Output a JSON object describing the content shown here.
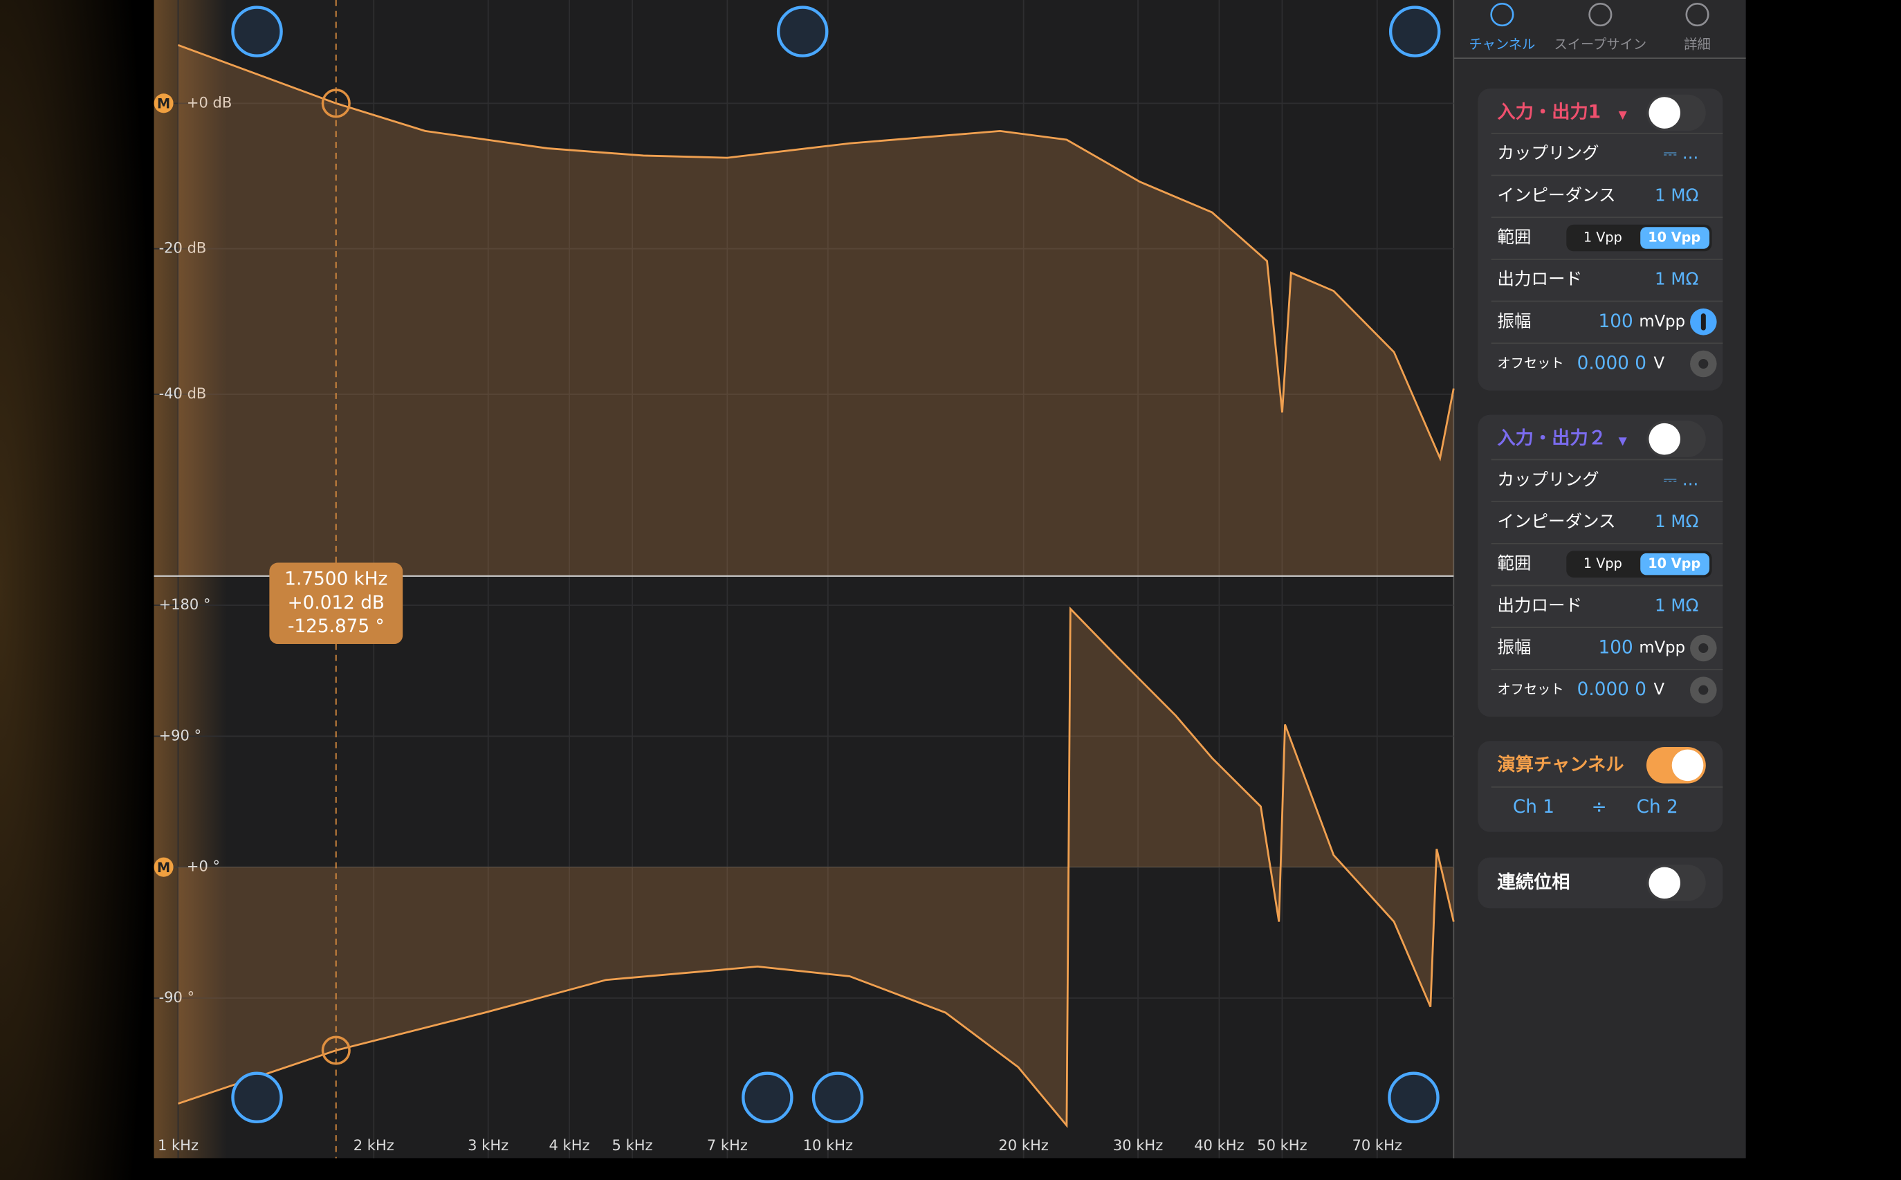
{
  "plot": {
    "xlim": [
      918,
      91800
    ],
    "log_x": true,
    "xticks": [
      {
        "value": 1000,
        "label": "1 kHz"
      },
      {
        "value": 2000,
        "label": "2 kHz"
      },
      {
        "value": 3000,
        "label": "3 kHz"
      },
      {
        "value": 4000,
        "label": "4 kHz"
      },
      {
        "value": 5000,
        "label": "5 kHz"
      },
      {
        "value": 7000,
        "label": "7 kHz"
      },
      {
        "value": 10000,
        "label": "10 kHz"
      },
      {
        "value": 20000,
        "label": "20 kHz"
      },
      {
        "value": 30000,
        "label": "30 kHz"
      },
      {
        "value": 40000,
        "label": "40 kHz"
      },
      {
        "value": 50000,
        "label": "50 kHz"
      },
      {
        "value": 70000,
        "label": "70 kHz"
      }
    ],
    "reference_marker": "M",
    "magnitude": {
      "type": "line",
      "color": "#f0a050",
      "x": [
        1000,
        1750,
        2400,
        3700,
        5200,
        7000,
        10800,
        18400,
        23300,
        30200,
        39000,
        47400,
        50000,
        51600,
        60000,
        74300,
        87500,
        91800
      ],
      "values": [
        8,
        0,
        -3.8,
        -6.2,
        -7.2,
        -7.5,
        -5.5,
        -3.8,
        -5,
        -10.8,
        -15,
        -21.7,
        -42.5,
        -23.3,
        -25.8,
        -34.2,
        -48.8,
        -39.2
      ],
      "ylim": [
        -65,
        14.2
      ],
      "yticks": [
        {
          "value": 0,
          "label": "+0 dB"
        },
        {
          "value": -20,
          "label": "-20 dB"
        },
        {
          "value": -40,
          "label": "-40 dB"
        }
      ]
    },
    "phase": {
      "type": "line",
      "color": "#f0a050",
      "x": [
        1000,
        1750,
        2965,
        4556,
        7795,
        10800,
        15170,
        19630,
        23300,
        23610,
        27690,
        34310,
        39000,
        46350,
        49430,
        50510,
        60000,
        74300,
        84580,
        86440,
        91800
      ],
      "values": [
        -162.5,
        -125.875,
        -100,
        -77.5,
        -68.3,
        -75,
        -100,
        -137.5,
        -177.5,
        177.5,
        145.8,
        104,
        75,
        41.7,
        -37.5,
        98,
        8.3,
        -37.5,
        -96,
        12.5,
        -37.5
      ],
      "ylim": [
        -200,
        199.2
      ],
      "yticks": [
        {
          "value": 180,
          "label": "+180 °"
        },
        {
          "value": 90,
          "label": "+90 °"
        },
        {
          "value": 0,
          "label": "+0 °"
        },
        {
          "value": -90,
          "label": "-90 °"
        }
      ]
    },
    "cursor": {
      "x": 1750,
      "labels": [
        "1.7500 kHz",
        "+0.012 dB",
        "-125.875 °"
      ]
    }
  },
  "sidebar": {
    "tabs": [
      {
        "label": "チャンネル",
        "active": true
      },
      {
        "label": "スイープサイン",
        "active": false
      },
      {
        "label": "詳細",
        "active": false
      }
    ],
    "channels": [
      {
        "title": "入力・出力1",
        "color": "#f0506e",
        "enabled": false,
        "coupling": {
          "label": "カップリング",
          "value": "⎓ ..."
        },
        "impedance": {
          "label": "インピーダンス",
          "value": "1 MΩ"
        },
        "range": {
          "label": "範囲",
          "options": [
            "1 Vpp",
            "10 Vpp"
          ],
          "selected": 1
        },
        "load": {
          "label": "出力ロード",
          "value": "1 MΩ"
        },
        "amplitude": {
          "label": "振幅",
          "value": "100",
          "unit": "mVpp",
          "active": true
        },
        "offset": {
          "label": "オフセット",
          "value": "0.000 0",
          "unit": "V",
          "active": false
        }
      },
      {
        "title": "入力・出力２",
        "color": "#7b6cf0",
        "enabled": false,
        "coupling": {
          "label": "カップリング",
          "value": "⎓ ..."
        },
        "impedance": {
          "label": "インピーダンス",
          "value": "1 MΩ"
        },
        "range": {
          "label": "範囲",
          "options": [
            "1 Vpp",
            "10 Vpp"
          ],
          "selected": 1
        },
        "load": {
          "label": "出力ロード",
          "value": "1 MΩ"
        },
        "amplitude": {
          "label": "振幅",
          "value": "100",
          "unit": "mVpp",
          "active": false
        },
        "offset": {
          "label": "オフセット",
          "value": "0.000 0",
          "unit": "V",
          "active": false
        }
      }
    ],
    "math": {
      "title": "演算チャンネル",
      "enabled": true,
      "operands": [
        "Ch 1",
        "÷",
        "Ch 2"
      ]
    },
    "continuous_phase": {
      "title": "連続位相",
      "enabled": false
    }
  }
}
